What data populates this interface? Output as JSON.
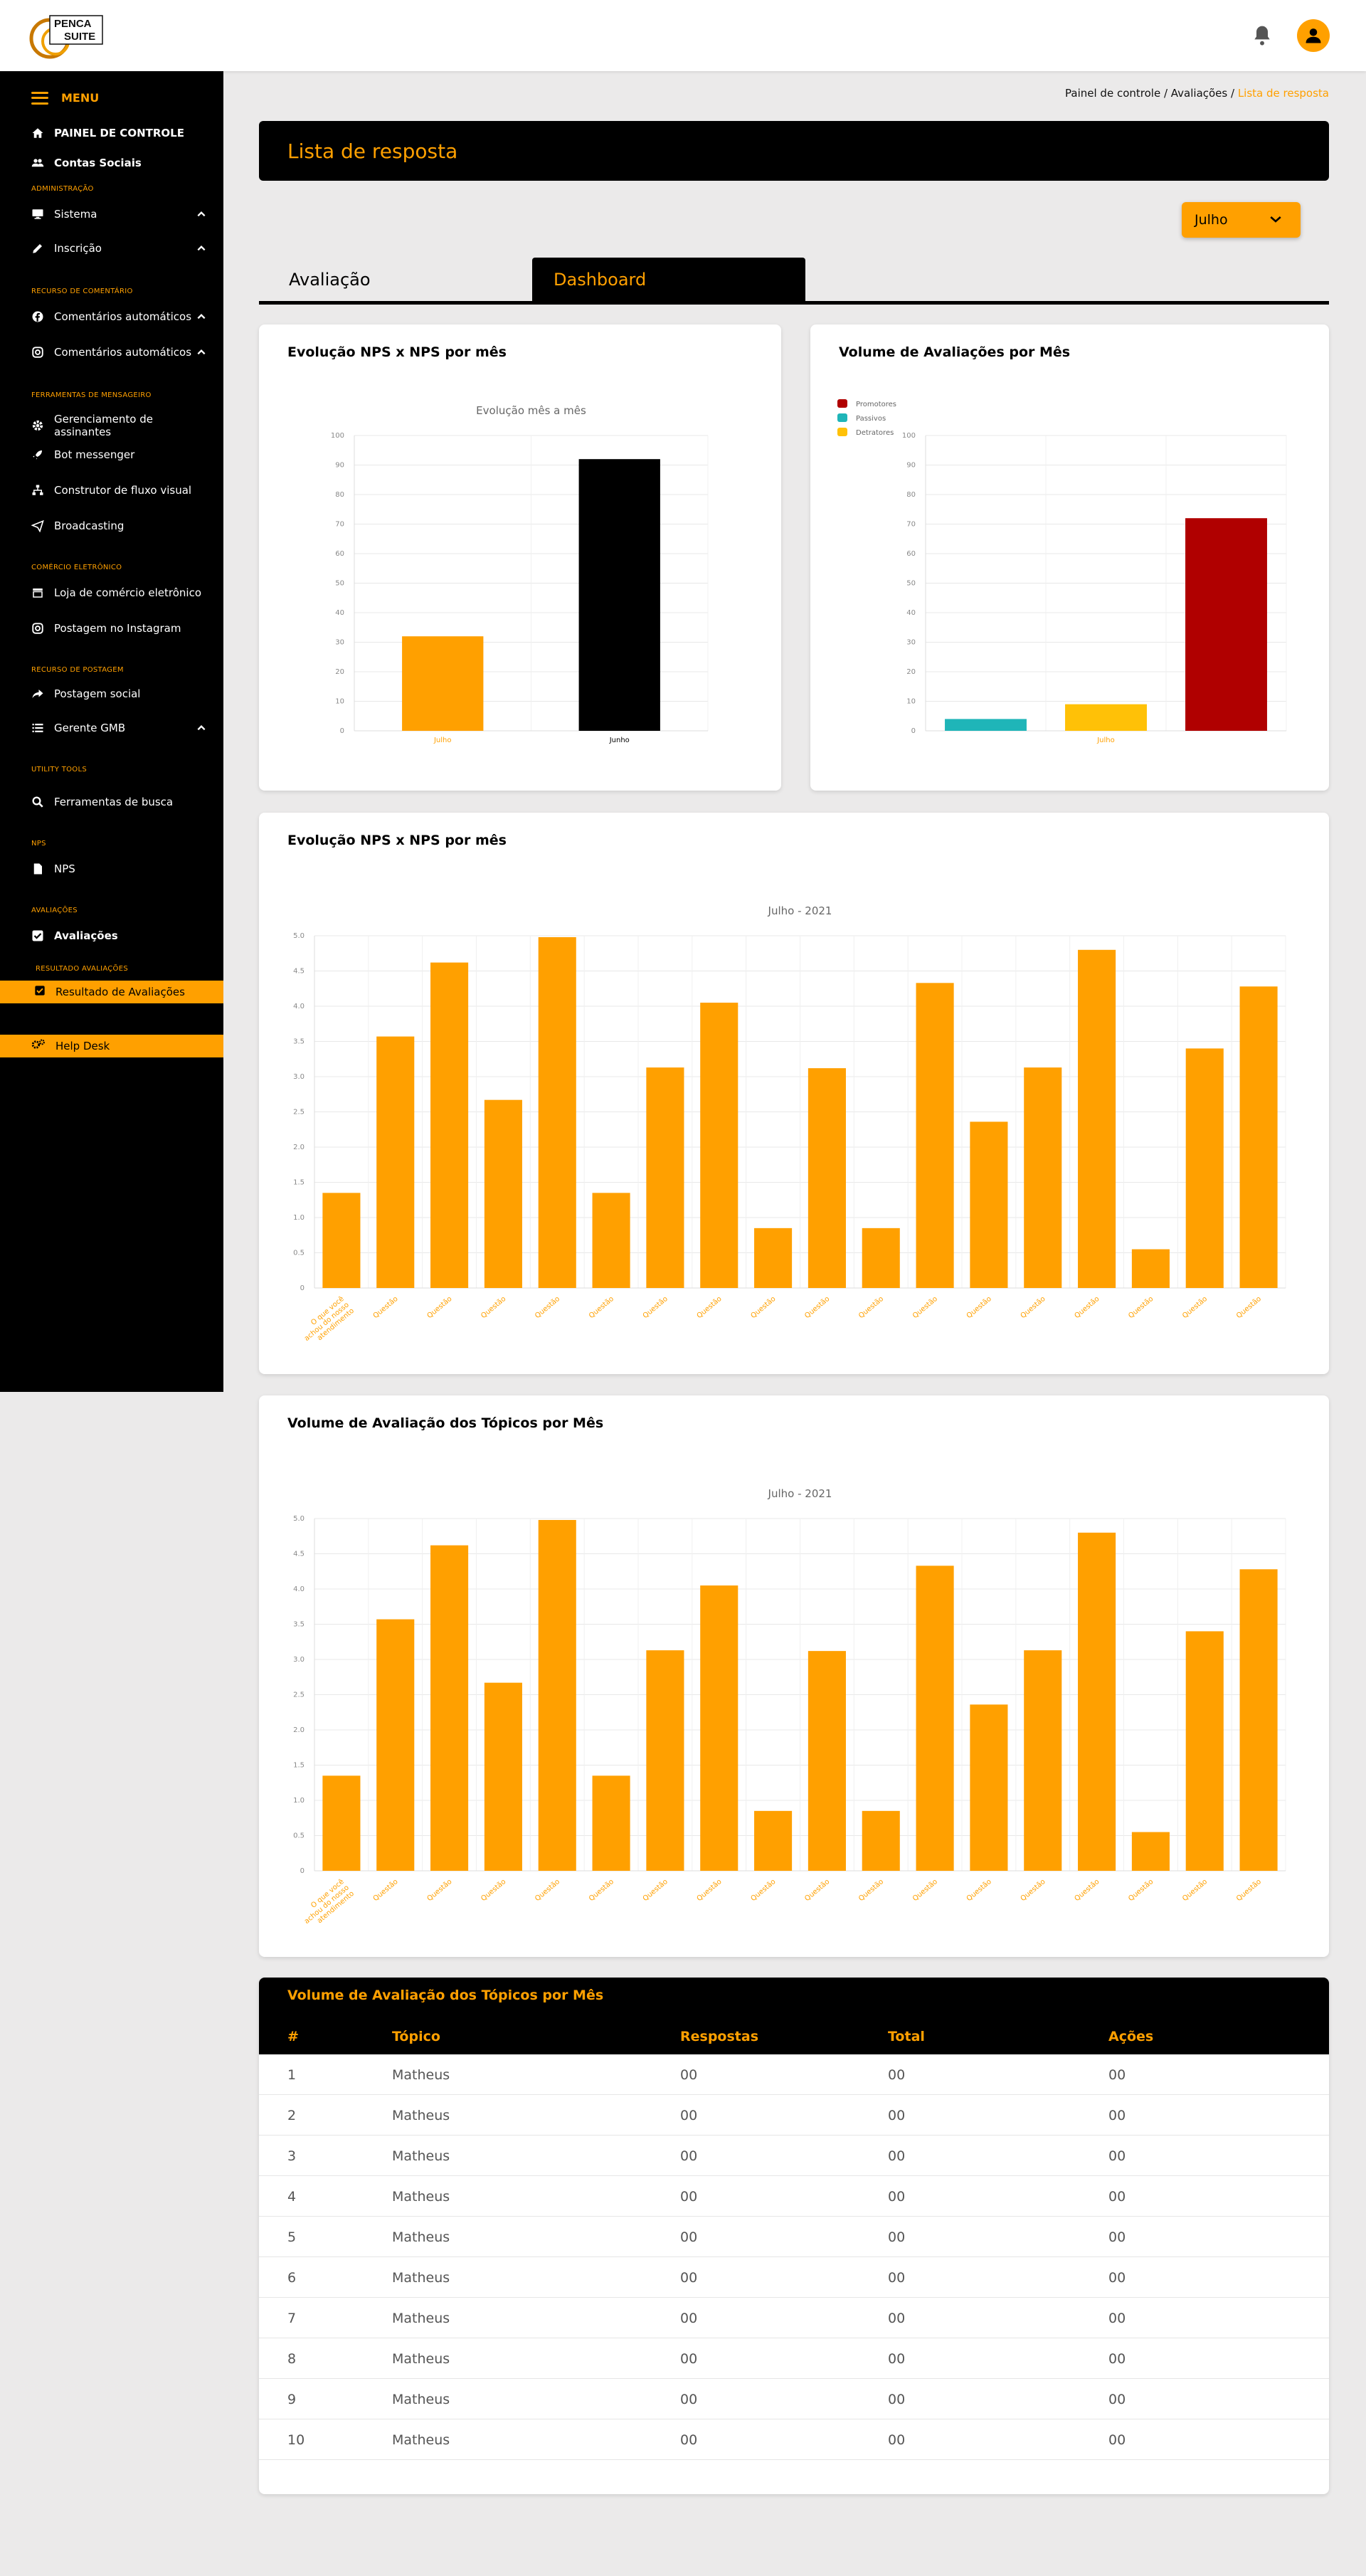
{
  "brand": {
    "logo_text_1": "PENCA",
    "logo_text_2": "SUITE",
    "accent": "#ffa000"
  },
  "header": {
    "bell_icon": "bell-icon",
    "avatar_icon": "user-icon"
  },
  "sidebar": {
    "menu_label": "MENU",
    "items": [
      {
        "label": "PAINEL DE CONTROLE",
        "icon": "home-icon"
      },
      {
        "label": "Contas Sociais",
        "icon": "users-icon"
      },
      {
        "section": "ADMINISTRAÇÃO"
      },
      {
        "label": "Sistema",
        "icon": "monitor-icon"
      },
      {
        "label": "Inscrição",
        "icon": "pencil-icon"
      },
      {
        "section": "RECURSO DE COMENTÁRIO"
      },
      {
        "label": "Comentários automáticos",
        "icon": "facebook-icon"
      },
      {
        "label": "Comentários automáticos",
        "icon": "instagram-icon"
      },
      {
        "section": "FERRAMENTAS DE MENSAGEIRO"
      },
      {
        "label": "Gerenciamento de assinantes",
        "icon": "gear-icon"
      },
      {
        "label": "Bot messenger",
        "icon": "rocket-icon"
      },
      {
        "label": "Construtor de fluxo visual",
        "icon": "sitemap-icon"
      },
      {
        "label": "Broadcasting",
        "icon": "paper-plane-icon"
      },
      {
        "section": "COMÉRCIO ELETRÔNICO"
      },
      {
        "label": "Loja de comércio eletrônico",
        "icon": "store-icon"
      },
      {
        "label": "Postagem no Instagram",
        "icon": "instagram-icon"
      },
      {
        "section": "RECURSO DE POSTAGEM"
      },
      {
        "label": "Postagem social",
        "icon": "share-icon"
      },
      {
        "label": "Gerente GMB",
        "icon": "list-icon"
      },
      {
        "section": "UTILITY TOOLS"
      },
      {
        "label": "Ferramentas de busca",
        "icon": "search-icon"
      },
      {
        "section": "NPS"
      },
      {
        "label": "NPS",
        "icon": "document-icon"
      },
      {
        "section": "AVALIAÇÕES"
      },
      {
        "label": "Avaliações",
        "icon": "checkbox-icon"
      },
      {
        "section": "RESULTADO AVALIAÇÕES"
      },
      {
        "label": "Resultado de Avaliações",
        "icon": "checkbox-icon"
      },
      {
        "label": "Help Desk",
        "icon": "gears-icon"
      }
    ]
  },
  "breadcrumb": {
    "home": "Painel de controle",
    "sep": " / ",
    "mid": "Avaliações",
    "current": "Lista de resposta"
  },
  "page": {
    "title": "Lista de resposta",
    "month_select": "Julho"
  },
  "tabs": [
    {
      "label": "Avaliação"
    },
    {
      "label": "Dashboard",
      "active": true
    }
  ],
  "cards": {
    "nps_evolution_title": "Evolução NPS x NPS por mês",
    "volume_title": "Volume de Avaliações por Mês",
    "nps_topics_title": "Evolução NPS x NPS por mês",
    "volume_topics_title": "Volume de Avaliação dos Tópicos por Mês"
  },
  "chart_data": [
    {
      "type": "bar",
      "title": "Evolução mês a mês",
      "categories": [
        "Julho",
        "Junho"
      ],
      "values": [
        32,
        92
      ],
      "colors": [
        "#ffa000",
        "#000000"
      ],
      "ylim": [
        0,
        100
      ],
      "yticks": [
        0,
        10,
        20,
        30,
        40,
        50,
        60,
        70,
        80,
        90,
        100
      ],
      "grid": true
    },
    {
      "type": "bar",
      "legend": [
        "Promotores",
        "Passivos",
        "Detratores"
      ],
      "legend_colors": [
        "#b00000",
        "#1fb5b8",
        "#ffc107"
      ],
      "legend_position": "top-left",
      "categories": [
        "",
        "Julho",
        ""
      ],
      "values": [
        4,
        9,
        72
      ],
      "colors": [
        "#1fb5b8",
        "#ffc107",
        "#b00000"
      ],
      "ylim": [
        0,
        100
      ],
      "yticks": [
        0,
        10,
        20,
        30,
        40,
        50,
        60,
        70,
        80,
        90,
        100
      ],
      "grid": true
    },
    {
      "type": "bar",
      "title": "Julho - 2021",
      "categories": [
        "O que você achou do nosso atendimento",
        "Questão",
        "Questão",
        "Questão",
        "Questão",
        "Questão",
        "Questão",
        "Questão",
        "Questão",
        "Questão",
        "Questão",
        "Questão",
        "Questão",
        "Questão",
        "Questão",
        "Questão",
        "Questão",
        "Questão"
      ],
      "values": [
        1.35,
        3.57,
        4.62,
        2.67,
        4.98,
        1.35,
        3.13,
        4.05,
        0.85,
        3.12,
        0.85,
        4.33,
        2.36,
        3.13,
        4.8,
        0.55,
        3.4,
        4.28
      ],
      "ylim": [
        0,
        5
      ],
      "yticks": [
        "0",
        "0.5",
        "1.0",
        "1.5",
        "2.0",
        "2.5",
        "3.0",
        "3.5",
        "4.0",
        "4.5",
        "5.0"
      ],
      "grid": true
    },
    {
      "type": "bar",
      "title": "Julho - 2021",
      "categories": [
        "O que você achou do nosso atendimento",
        "Questão",
        "Questão",
        "Questão",
        "Questão",
        "Questão",
        "Questão",
        "Questão",
        "Questão",
        "Questão",
        "Questão",
        "Questão",
        "Questão",
        "Questão",
        "Questão",
        "Questão",
        "Questão",
        "Questão"
      ],
      "values": [
        1.35,
        3.57,
        4.62,
        2.67,
        4.98,
        1.35,
        3.13,
        4.05,
        0.85,
        3.12,
        0.85,
        4.33,
        2.36,
        3.13,
        4.8,
        0.55,
        3.4,
        4.28
      ],
      "ylim": [
        0,
        5
      ],
      "yticks": [
        "0",
        "0.5",
        "1.0",
        "1.5",
        "2.0",
        "2.5",
        "3.0",
        "3.5",
        "4.0",
        "4.5",
        "5.0"
      ],
      "grid": true
    }
  ],
  "table": {
    "title": "Volume de Avaliação dos Tópicos por Mês",
    "headers": [
      "#",
      "Tópico",
      "Respostas",
      "Total",
      "Ações"
    ],
    "rows": [
      [
        "1",
        "Matheus",
        "00",
        "00",
        "00"
      ],
      [
        "2",
        "Matheus",
        "00",
        "00",
        "00"
      ],
      [
        "3",
        "Matheus",
        "00",
        "00",
        "00"
      ],
      [
        "4",
        "Matheus",
        "00",
        "00",
        "00"
      ],
      [
        "5",
        "Matheus",
        "00",
        "00",
        "00"
      ],
      [
        "6",
        "Matheus",
        "00",
        "00",
        "00"
      ],
      [
        "7",
        "Matheus",
        "00",
        "00",
        "00"
      ],
      [
        "8",
        "Matheus",
        "00",
        "00",
        "00"
      ],
      [
        "9",
        "Matheus",
        "00",
        "00",
        "00"
      ],
      [
        "10",
        "Matheus",
        "00",
        "00",
        "00"
      ]
    ]
  }
}
